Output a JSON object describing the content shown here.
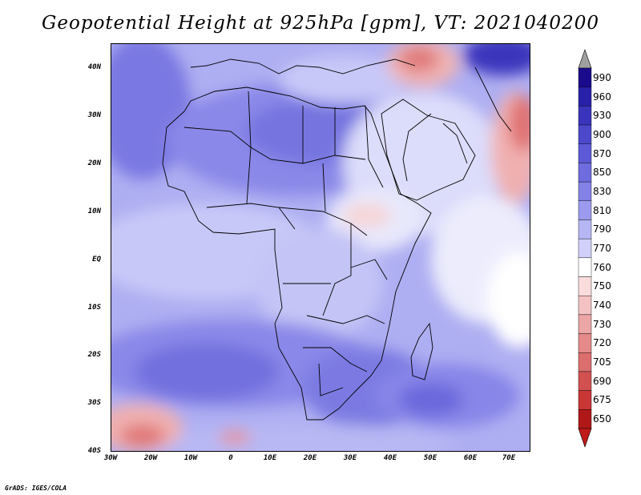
{
  "title": "Geopotential Height at 925hPa [gpm], VT: 2021040200",
  "footer": "GrADS: IGES/COLA",
  "map": {
    "x_ticks": [
      "30W",
      "20W",
      "10W",
      "0",
      "10E",
      "20E",
      "30E",
      "40E",
      "50E",
      "60E",
      "70E"
    ],
    "y_ticks": [
      "40N",
      "30N",
      "20N",
      "10N",
      "EQ",
      "10S",
      "20S",
      "30S",
      "40S"
    ]
  },
  "colorbar": {
    "labels": [
      "990",
      "960",
      "930",
      "900",
      "870",
      "850",
      "830",
      "810",
      "790",
      "770",
      "760",
      "750",
      "740",
      "730",
      "720",
      "705",
      "690",
      "675",
      "650"
    ],
    "colors": [
      "#1a0a8c",
      "#2820a8",
      "#3a34bc",
      "#4c48cc",
      "#5c5ad6",
      "#6e6cde",
      "#8482e6",
      "#9c9aee",
      "#b6b6f4",
      "#d0d0fa",
      "#ffffff",
      "#fadcdc",
      "#f4c2c2",
      "#eca6a6",
      "#e48a8a",
      "#dc6e6e",
      "#d25050",
      "#c83636",
      "#b01818"
    ],
    "top_arrow_color": "#a0a0a0",
    "bottom_arrow_color": "#c01a1a"
  }
}
